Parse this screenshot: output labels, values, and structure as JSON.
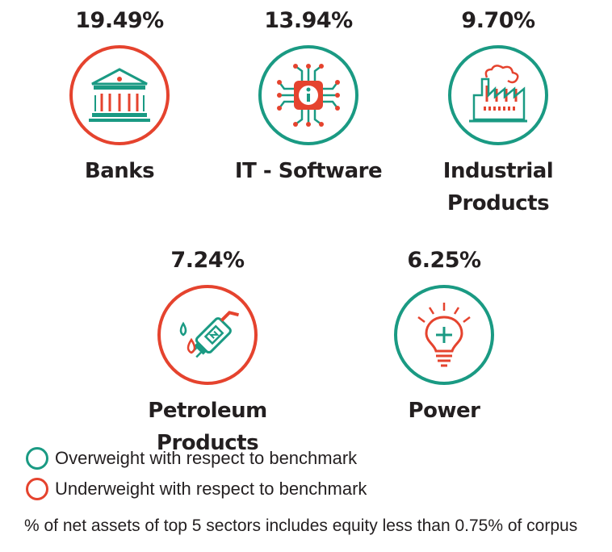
{
  "chart_data": {
    "type": "table",
    "categories": [
      "Banks",
      "IT - Software",
      "Industrial\nProducts",
      "Petroleum Products",
      "Power"
    ],
    "values": [
      19.49,
      13.94,
      9.7,
      7.24,
      6.25
    ],
    "value_labels": [
      "19.49%",
      "13.94%",
      "9.70%",
      "7.24%",
      "6.25%"
    ],
    "weighting": [
      "Underweight",
      "Overweight",
      "Overweight",
      "Underweight",
      "Overweight"
    ]
  },
  "sectors": [
    {
      "pct": "19.49%",
      "name": "Banks",
      "icon": "bank-building-icon",
      "status": "under"
    },
    {
      "pct": "13.94%",
      "name": "IT - Software",
      "icon": "chip-circuit-icon",
      "status": "over"
    },
    {
      "pct": "9.70%",
      "name": "Industrial Products",
      "icon": "factory-icon",
      "status": "over"
    },
    {
      "pct": "7.24%",
      "name": "Petroleum Products",
      "icon": "fuel-nozzle-icon",
      "status": "under"
    },
    {
      "pct": "6.25%",
      "name": "Power",
      "icon": "light-bulb-icon",
      "status": "over"
    }
  ],
  "legend": {
    "overweight": "Overweight with respect to benchmark",
    "underweight": "Underweight with respect to benchmark"
  },
  "footnote": "% of net assets of top 5 sectors includes equity less than 0.75% of corpus",
  "colors": {
    "overweight": "#1a9a83",
    "underweight": "#e5432e"
  }
}
